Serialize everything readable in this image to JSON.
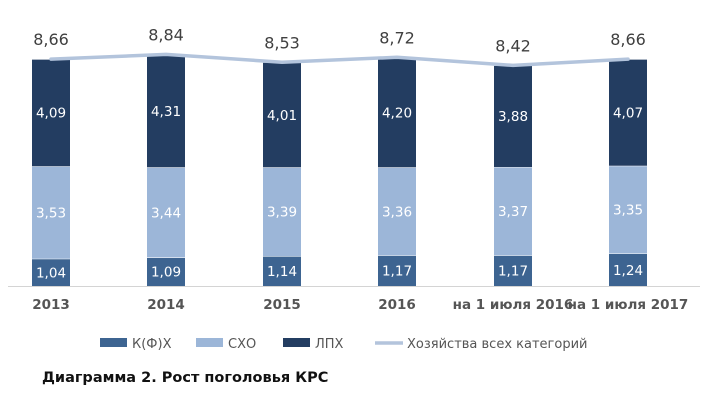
{
  "caption": "Диаграмма 2. Рост поголовья КРС",
  "chart_data": {
    "type": "bar",
    "stacked": true,
    "categories": [
      "2013",
      "2014",
      "2015",
      "2016",
      "на 1 июля 2016",
      "на 1 июля 2017"
    ],
    "series": [
      {
        "name": "К(Ф)Х",
        "color": "#3d6491",
        "values": [
          1.04,
          1.09,
          1.14,
          1.17,
          1.17,
          1.24
        ],
        "labels": [
          "1,04",
          "1,09",
          "1,14",
          "1,17",
          "1,17",
          "1,24"
        ]
      },
      {
        "name": "СХО",
        "color": "#9cb6d8",
        "values": [
          3.53,
          3.44,
          3.39,
          3.36,
          3.37,
          3.35
        ],
        "labels": [
          "3,53",
          "3,44",
          "3,39",
          "3,36",
          "3,37",
          "3,35"
        ]
      },
      {
        "name": "ЛПХ",
        "color": "#233d61",
        "values": [
          4.09,
          4.31,
          4.01,
          4.2,
          3.88,
          4.07
        ],
        "labels": [
          "4,09",
          "4,31",
          "4,01",
          "4,20",
          "3,88",
          "4,07"
        ]
      }
    ],
    "line_series": {
      "name": "Хозяйства всех категорий",
      "color": "#b3c4dc",
      "values": [
        8.66,
        8.84,
        8.53,
        8.72,
        8.42,
        8.66
      ],
      "labels": [
        "8,66",
        "8,84",
        "8,53",
        "8,72",
        "8,42",
        "8,66"
      ]
    },
    "legend_position": "bottom",
    "grid": false
  }
}
